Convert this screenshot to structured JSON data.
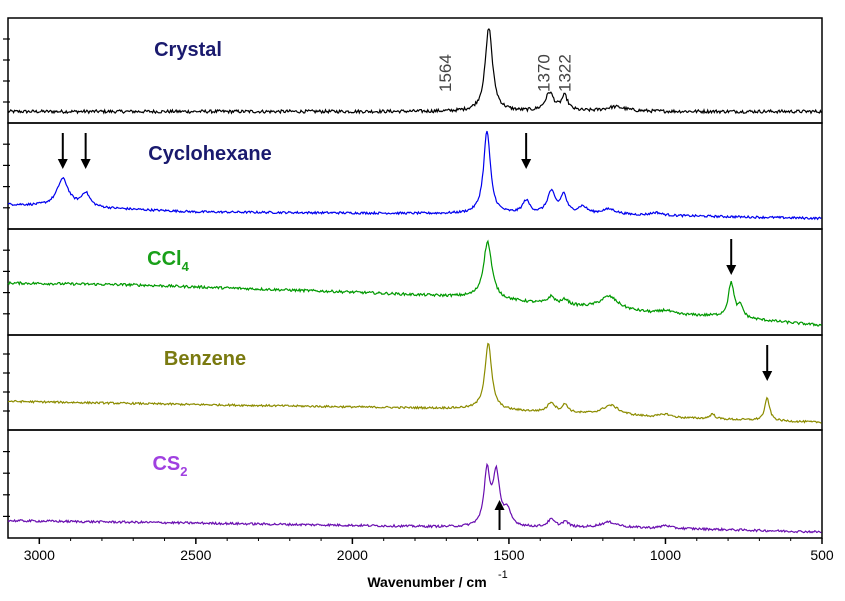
{
  "chart_data": {
    "type": "line",
    "xlabel": "Wavenumber / cm",
    "xlabel_superscript": "-1",
    "xlim": [
      3100,
      500
    ],
    "x_reversed": true,
    "x_ticks": [
      3000,
      2500,
      2000,
      1500,
      1000,
      500
    ],
    "x_tick_labels": [
      "3000",
      "2500",
      "2000",
      "1500",
      "1000",
      "500"
    ],
    "y_ticks_per_panel": 4,
    "panels": [
      {
        "label": "Crystal",
        "label_subscript": "",
        "color": "#000000",
        "label_color": "#1a1a6e",
        "baseline": 0.06,
        "noise": 0.018,
        "trend": [],
        "peaks": [
          {
            "x": 1564,
            "h": 0.92,
            "w": 14
          },
          {
            "x": 1370,
            "h": 0.2,
            "w": 16
          },
          {
            "x": 1322,
            "h": 0.16,
            "w": 12
          },
          {
            "x": 1160,
            "h": 0.05,
            "w": 40
          }
        ],
        "arrows": []
      },
      {
        "label": "Cyclohexane",
        "label_subscript": "",
        "color": "#0000ee",
        "label_color": "#1a1a6e",
        "baseline": 0.12,
        "noise": 0.012,
        "trend": [
          [
            3100,
            0.2
          ],
          [
            2500,
            0.12
          ],
          [
            1650,
            0.1
          ],
          [
            1000,
            0.08
          ],
          [
            500,
            0.05
          ]
        ],
        "peaks": [
          {
            "x": 2925,
            "h": 0.3,
            "w": 22
          },
          {
            "x": 2852,
            "h": 0.15,
            "w": 16
          },
          {
            "x": 1570,
            "h": 0.9,
            "w": 13
          },
          {
            "x": 1445,
            "h": 0.14,
            "w": 14
          },
          {
            "x": 1365,
            "h": 0.24,
            "w": 15
          },
          {
            "x": 1325,
            "h": 0.2,
            "w": 12
          },
          {
            "x": 1265,
            "h": 0.08,
            "w": 18
          },
          {
            "x": 1180,
            "h": 0.06,
            "w": 30
          },
          {
            "x": 1030,
            "h": 0.03,
            "w": 20
          }
        ],
        "arrows": [
          {
            "x": 2925,
            "dir": "down"
          },
          {
            "x": 2852,
            "dir": "down"
          },
          {
            "x": 1445,
            "dir": "down"
          }
        ]
      },
      {
        "label": "CCl",
        "label_subscript": "4",
        "color": "#009900",
        "label_color": "#19a019",
        "baseline": 0.35,
        "noise": 0.014,
        "trend": [
          [
            3100,
            0.5
          ],
          [
            2700,
            0.48
          ],
          [
            2000,
            0.4
          ],
          [
            1650,
            0.35
          ],
          [
            1000,
            0.16
          ],
          [
            850,
            0.14
          ],
          [
            500,
            0.04
          ]
        ],
        "peaks": [
          {
            "x": 1568,
            "h": 0.62,
            "w": 16
          },
          {
            "x": 1365,
            "h": 0.08,
            "w": 14
          },
          {
            "x": 1320,
            "h": 0.06,
            "w": 12
          },
          {
            "x": 1180,
            "h": 0.14,
            "w": 35
          },
          {
            "x": 1000,
            "h": 0.04,
            "w": 22
          },
          {
            "x": 790,
            "h": 0.38,
            "w": 11
          },
          {
            "x": 760,
            "h": 0.12,
            "w": 10
          }
        ],
        "arrows": [
          {
            "x": 790,
            "dir": "down"
          }
        ]
      },
      {
        "label": "Benzene",
        "label_subscript": "",
        "color": "#8c8c00",
        "label_color": "#7a7a10",
        "baseline": 0.2,
        "noise": 0.012,
        "trend": [
          [
            3100,
            0.28
          ],
          [
            2500,
            0.24
          ],
          [
            1650,
            0.19
          ],
          [
            1000,
            0.08
          ],
          [
            500,
            0.02
          ]
        ],
        "peaks": [
          {
            "x": 1566,
            "h": 0.82,
            "w": 13
          },
          {
            "x": 1365,
            "h": 0.12,
            "w": 14
          },
          {
            "x": 1320,
            "h": 0.1,
            "w": 11
          },
          {
            "x": 1175,
            "h": 0.12,
            "w": 32
          },
          {
            "x": 1000,
            "h": 0.04,
            "w": 20
          },
          {
            "x": 850,
            "h": 0.06,
            "w": 10
          },
          {
            "x": 675,
            "h": 0.28,
            "w": 9
          }
        ],
        "arrows": [
          {
            "x": 675,
            "dir": "down"
          }
        ]
      },
      {
        "label": "CS",
        "label_subscript": "2",
        "color": "#6a0fb0",
        "label_color": "#a040e0",
        "baseline": 0.1,
        "noise": 0.012,
        "trend": [
          [
            3100,
            0.12
          ],
          [
            2600,
            0.1
          ],
          [
            2000,
            0.07
          ],
          [
            1650,
            0.05
          ],
          [
            1000,
            0.04
          ],
          [
            500,
            0.0
          ]
        ],
        "peaks": [
          {
            "x": 1570,
            "h": 0.58,
            "w": 11
          },
          {
            "x": 1540,
            "h": 0.55,
            "w": 13
          },
          {
            "x": 1505,
            "h": 0.15,
            "w": 14
          },
          {
            "x": 1365,
            "h": 0.08,
            "w": 14
          },
          {
            "x": 1320,
            "h": 0.06,
            "w": 12
          },
          {
            "x": 1180,
            "h": 0.06,
            "w": 35
          },
          {
            "x": 1000,
            "h": 0.03,
            "w": 15
          }
        ],
        "arrows": [
          {
            "x": 1530,
            "dir": "up"
          }
        ]
      }
    ],
    "annotations": [
      {
        "text": "1564",
        "x": 1564,
        "panel": 0
      },
      {
        "text": "1370",
        "x": 1370,
        "panel": 0
      },
      {
        "text": "1322",
        "x": 1322,
        "panel": 0
      }
    ]
  }
}
